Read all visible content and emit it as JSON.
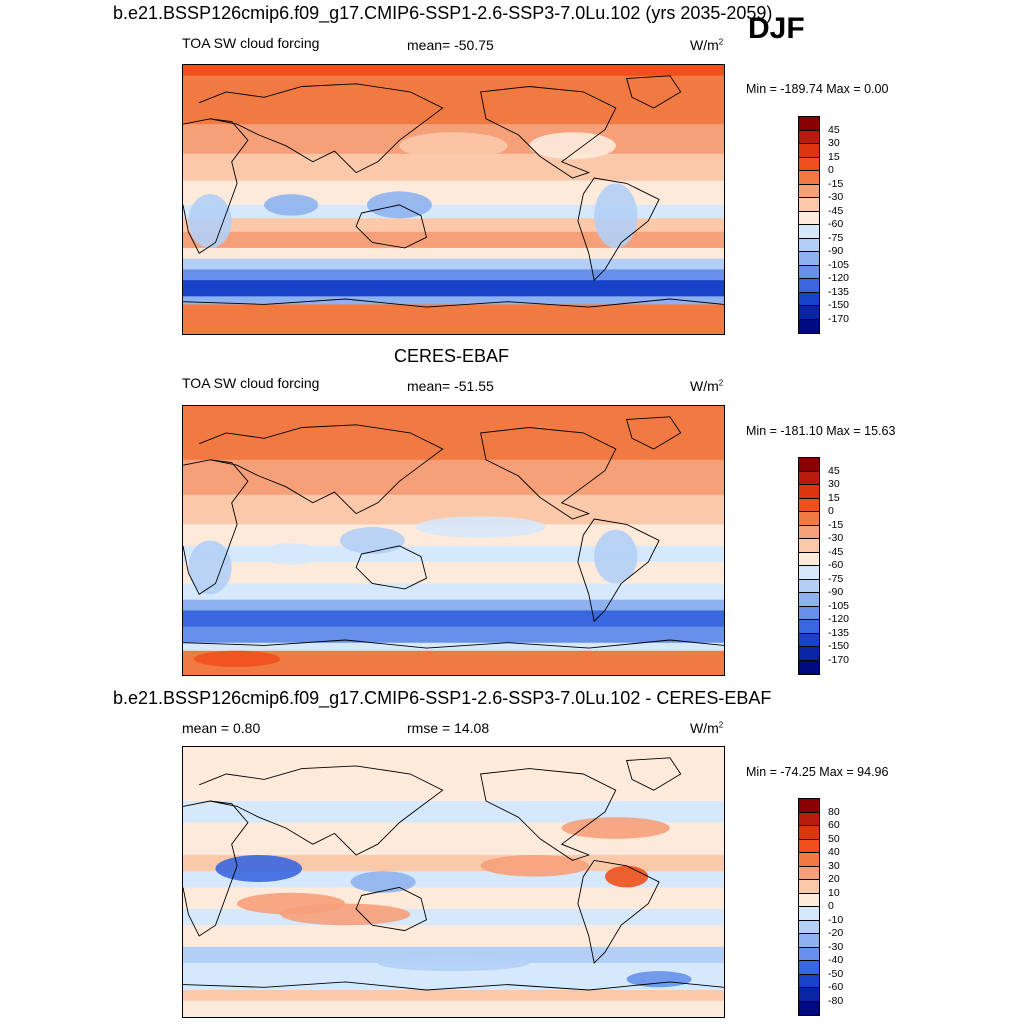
{
  "season": "DJF",
  "units_label": "W/m",
  "units_sup": "2",
  "panels": [
    {
      "title": "b.e21.BSSP126cmip6.f09_g17.CMIP6-SSP1-2.6-SSP3-7.0Lu.102 (yrs 2035-2059)",
      "left_label": "TOA SW cloud forcing",
      "center_label": "mean= -50.75",
      "minmax": "Min = -189.74 Max =   0.00"
    },
    {
      "title": "CERES-EBAF",
      "left_label": "TOA SW cloud forcing",
      "center_label": "mean= -51.55",
      "minmax": "Min = -181.10 Max =  15.63"
    },
    {
      "title": "b.e21.BSSP126cmip6.f09_g17.CMIP6-SSP1-2.6-SSP3-7.0Lu.102 - CERES-EBAF",
      "left_label": "mean =   0.80",
      "center_label": "rmse =  14.08",
      "minmax": "Min = -74.25 Max =  94.96"
    }
  ],
  "chart_data": [
    {
      "type": "heatmap",
      "title": "b.e21.BSSP126cmip6.f09_g17.CMIP6-SSP1-2.6-SSP3-7.0Lu.102 (yrs 2035-2059)",
      "variable": "TOA SW cloud forcing",
      "units": "W/m2",
      "mean": -50.75,
      "min": -189.74,
      "max": 0.0,
      "colorbar_levels": [
        "45",
        "30",
        "15",
        "0",
        "-15",
        "-30",
        "-45",
        "-60",
        "-75",
        "-90",
        "-105",
        "-120",
        "-135",
        "-150",
        "-170"
      ],
      "colorbar_colors": [
        "#8b0000",
        "#b81c0c",
        "#dd3510",
        "#f0511c",
        "#f07a42",
        "#f6a07a",
        "#fbc8aa",
        "#feeadb",
        "#d6e8fb",
        "#b3cff6",
        "#8eb2f0",
        "#6690ea",
        "#3a67de",
        "#1843c9",
        "#0a25a4",
        "#000a80"
      ]
    },
    {
      "type": "heatmap",
      "title": "CERES-EBAF",
      "variable": "TOA SW cloud forcing",
      "units": "W/m2",
      "mean": -51.55,
      "min": -181.1,
      "max": 15.63,
      "colorbar_levels": [
        "45",
        "30",
        "15",
        "0",
        "-15",
        "-30",
        "-45",
        "-60",
        "-75",
        "-90",
        "-105",
        "-120",
        "-135",
        "-150",
        "-170"
      ],
      "colorbar_colors": [
        "#8b0000",
        "#b81c0c",
        "#dd3510",
        "#f0511c",
        "#f07a42",
        "#f6a07a",
        "#fbc8aa",
        "#feeadb",
        "#d6e8fb",
        "#b3cff6",
        "#8eb2f0",
        "#6690ea",
        "#3a67de",
        "#1843c9",
        "#0a25a4",
        "#000a80"
      ]
    },
    {
      "type": "heatmap",
      "title": "b.e21.BSSP126cmip6.f09_g17.CMIP6-SSP1-2.6-SSP3-7.0Lu.102 - CERES-EBAF",
      "units": "W/m2",
      "mean": 0.8,
      "rmse": 14.08,
      "min": -74.25,
      "max": 94.96,
      "colorbar_levels": [
        "80",
        "60",
        "50",
        "40",
        "30",
        "20",
        "10",
        "0",
        "-10",
        "-20",
        "-30",
        "-40",
        "-50",
        "-60",
        "-80"
      ],
      "colorbar_colors": [
        "#8b0000",
        "#b81c0c",
        "#dd3510",
        "#f0511c",
        "#f07a42",
        "#f6a07a",
        "#fbc8aa",
        "#feeadb",
        "#d6e8fb",
        "#b3cff6",
        "#8eb2f0",
        "#6690ea",
        "#3a67de",
        "#1843c9",
        "#0a25a4",
        "#000a80"
      ]
    }
  ]
}
